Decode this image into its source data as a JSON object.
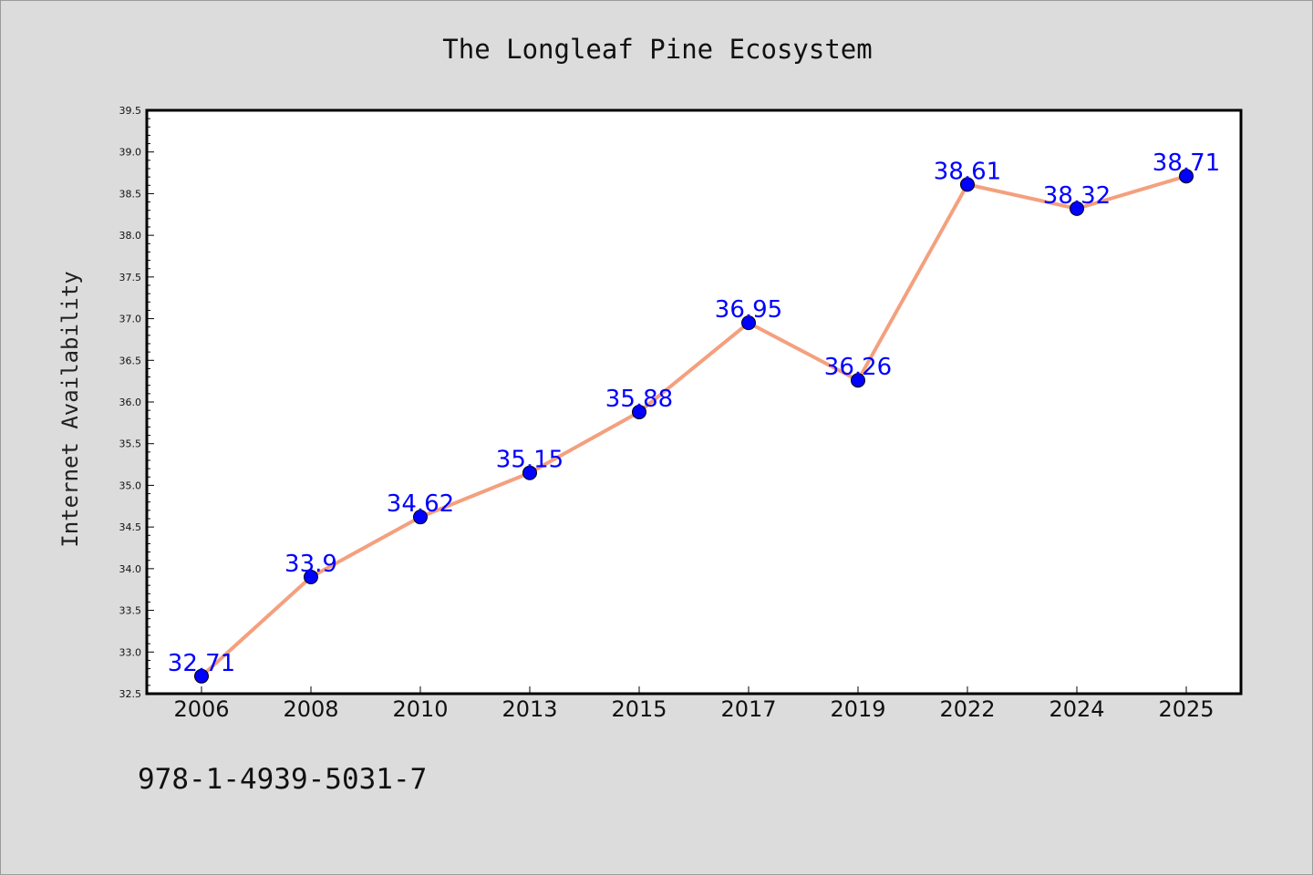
{
  "chart_data": {
    "type": "line",
    "title": "The Longleaf Pine Ecosystem",
    "xlabel": "",
    "ylabel": "Internet Availability",
    "categories": [
      "2006",
      "2008",
      "2010",
      "2013",
      "2015",
      "2017",
      "2019",
      "2022",
      "2024",
      "2025"
    ],
    "series": [
      {
        "values": [
          32.71,
          33.9,
          34.62,
          35.15,
          35.88,
          36.95,
          36.26,
          38.61,
          38.32,
          38.71
        ],
        "labels": [
          "32.71",
          "33.9",
          "34.62",
          "35.15",
          "35.88",
          "36.95",
          "36.26",
          "38.61",
          "38.32",
          "38.71"
        ],
        "line_color": "#f4a07e",
        "marker_color": "#0000ff"
      }
    ],
    "ylim": [
      32.5,
      39.5
    ],
    "yticks": [
      "32.5",
      "33.0",
      "33.5",
      "34.0",
      "34.5",
      "35.0",
      "35.5",
      "36.0",
      "36.5",
      "37.0",
      "37.5",
      "38.0",
      "38.5",
      "39.0",
      "39.5"
    ],
    "grid": false,
    "legend": "none"
  },
  "footer_text": "978-1-4939-5031-7",
  "colors": {
    "background": "#dcdcdc",
    "plot_background": "#ffffff",
    "data_label": "#0000ff"
  }
}
